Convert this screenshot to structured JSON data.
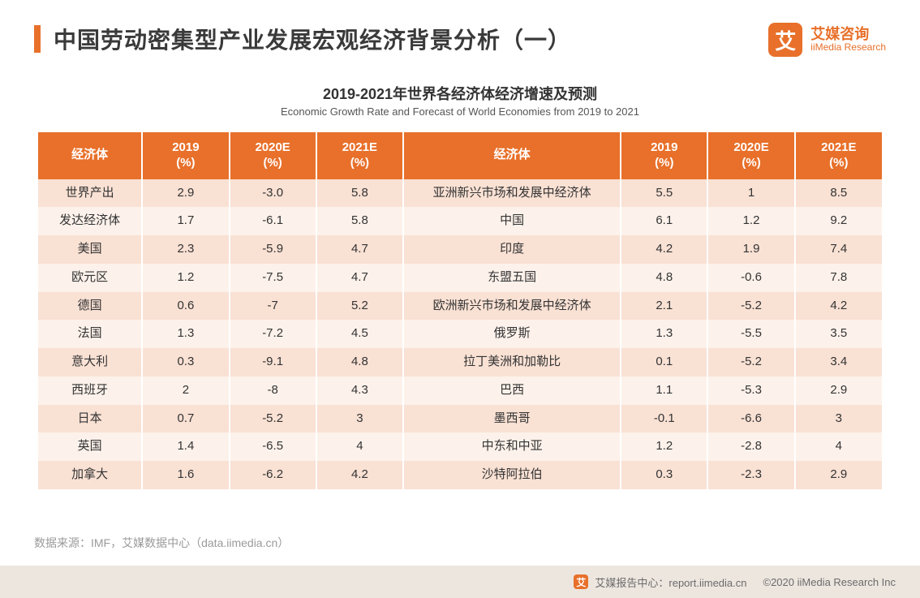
{
  "header": {
    "title": "中国劳动密集型产业发展宏观经济背景分析（一）",
    "accent_color": "#e8702a",
    "logo_cn": "艾媒咨询",
    "logo_en": "iiMedia Research",
    "logo_glyph": "艾"
  },
  "subtitle": {
    "cn": "2019-2021年世界各经济体经济增速及预测",
    "en": "Economic Growth Rate and Forecast of World Economies from 2019 to 2021"
  },
  "table": {
    "type": "table",
    "header_bg": "#e8702a",
    "header_fg": "#ffffff",
    "row_odd_bg": "#f9e1d4",
    "row_even_bg": "#fdf2eb",
    "text_color": "#333333",
    "fontsize": 15,
    "columns": [
      "经济体",
      "2019\n(%)",
      "2020E\n(%)",
      "2021E\n(%)",
      "经济体",
      "2019\n(%)",
      "2020E\n(%)",
      "2021E\n(%)"
    ],
    "rows": [
      [
        "世界产出",
        "2.9",
        "-3.0",
        "5.8",
        "亚洲新兴市场和发展中经济体",
        "5.5",
        "1",
        "8.5"
      ],
      [
        "发达经济体",
        "1.7",
        "-6.1",
        "5.8",
        "中国",
        "6.1",
        "1.2",
        "9.2"
      ],
      [
        "美国",
        "2.3",
        "-5.9",
        "4.7",
        "印度",
        "4.2",
        "1.9",
        "7.4"
      ],
      [
        "欧元区",
        "1.2",
        "-7.5",
        "4.7",
        "东盟五国",
        "4.8",
        "-0.6",
        "7.8"
      ],
      [
        "德国",
        "0.6",
        "-7",
        "5.2",
        "欧洲新兴市场和发展中经济体",
        "2.1",
        "-5.2",
        "4.2"
      ],
      [
        "法国",
        "1.3",
        "-7.2",
        "4.5",
        "俄罗斯",
        "1.3",
        "-5.5",
        "3.5"
      ],
      [
        "意大利",
        "0.3",
        "-9.1",
        "4.8",
        "拉丁美洲和加勒比",
        "0.1",
        "-5.2",
        "3.4"
      ],
      [
        "西班牙",
        "2",
        "-8",
        "4.3",
        "巴西",
        "1.1",
        "-5.3",
        "2.9"
      ],
      [
        "日本",
        "0.7",
        "-5.2",
        "3",
        "墨西哥",
        "-0.1",
        "-6.6",
        "3"
      ],
      [
        "英国",
        "1.4",
        "-6.5",
        "4",
        "中东和中亚",
        "1.2",
        "-2.8",
        "4"
      ],
      [
        "加拿大",
        "1.6",
        "-6.2",
        "4.2",
        "沙特阿拉伯",
        "0.3",
        "-2.3",
        "2.9"
      ]
    ]
  },
  "source": "数据来源：IMF，艾媒数据中心（data.iimedia.cn）",
  "footer": {
    "report_center": "艾媒报告中心：report.iimedia.cn",
    "copyright": "©2020  iiMedia Research Inc",
    "icon_glyph": "艾"
  }
}
